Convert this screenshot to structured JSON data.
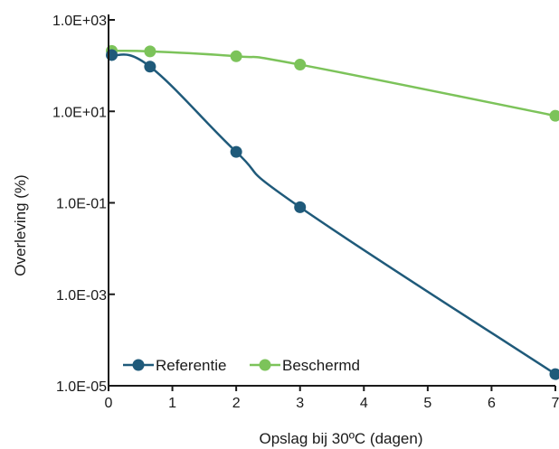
{
  "chart_data": {
    "type": "line",
    "title": "",
    "xlabel": "Opslag bij 30ºC (dagen)",
    "ylabel": "Overleving (%)",
    "xlim": [
      0,
      7
    ],
    "ylim": [
      1e-05,
      1000
    ],
    "yscale": "log",
    "grid": false,
    "legend_position": "bottom-left",
    "x_ticks": [
      "0",
      "1",
      "2",
      "3",
      "4",
      "5",
      "6",
      "7"
    ],
    "x_tick_values": [
      0,
      1,
      2,
      3,
      4,
      5,
      6,
      7
    ],
    "y_ticks": [
      "1.0E+03",
      "1.0E+01",
      "1.0E-01",
      "1.0E-03",
      "1.0E-05"
    ],
    "y_tick_values": [
      1000,
      10,
      0.1,
      0.001,
      1e-05
    ],
    "series": [
      {
        "name": "Referentie",
        "color": "#1f5a7a",
        "x": [
          0.05,
          0.65,
          2,
          3,
          7
        ],
        "y": [
          170,
          95,
          1.3,
          0.08,
          1.8e-05
        ]
      },
      {
        "name": "Beschermd",
        "color": "#7cc35a",
        "x": [
          0.05,
          0.65,
          2,
          3,
          7
        ],
        "y": [
          210,
          205,
          160,
          105,
          8
        ]
      }
    ]
  }
}
